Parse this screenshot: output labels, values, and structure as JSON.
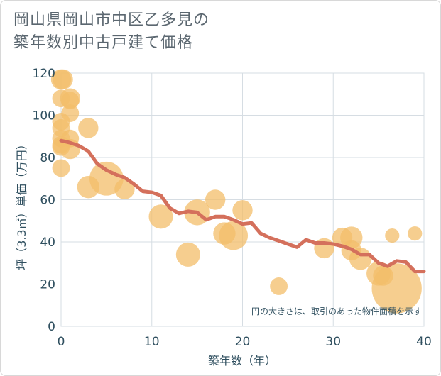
{
  "chart_data": {
    "type": "scatter",
    "title": [
      "岡山県岡山市中区乙多見の",
      "築年数別中古戸建て価格"
    ],
    "xlabel": "築年数（年）",
    "ylabel": "坪（3.3㎡）単価（万円）",
    "xlim": [
      0,
      40
    ],
    "ylim": [
      0,
      120
    ],
    "xticks": [
      "0",
      "10",
      "20",
      "30",
      "40"
    ],
    "yticks": [
      "0",
      "20",
      "40",
      "60",
      "80",
      "100",
      "120"
    ],
    "x_tick_values": [
      0,
      10,
      20,
      30,
      40
    ],
    "y_tick_values": [
      0,
      20,
      40,
      60,
      80,
      100,
      120
    ],
    "grid": true,
    "note": "円の大きさは、取引のあった物件面積を示す",
    "colors": {
      "bubble": "#f3bd6a",
      "line": "#d4705c",
      "grid": "#d6dde3",
      "text": "#2f4f5f"
    },
    "bubbles": [
      {
        "x": 0,
        "y": 117,
        "size": 3
      },
      {
        "x": 0.2,
        "y": 117,
        "size": 3
      },
      {
        "x": 0,
        "y": 108,
        "size": 2
      },
      {
        "x": 0,
        "y": 97,
        "size": 2
      },
      {
        "x": 0,
        "y": 94,
        "size": 2
      },
      {
        "x": 0,
        "y": 89,
        "size": 2
      },
      {
        "x": 0,
        "y": 86,
        "size": 2
      },
      {
        "x": 0,
        "y": 85,
        "size": 2
      },
      {
        "x": 0,
        "y": 75,
        "size": 2
      },
      {
        "x": 1,
        "y": 108,
        "size": 3
      },
      {
        "x": 1,
        "y": 107,
        "size": 2
      },
      {
        "x": 1,
        "y": 101,
        "size": 2
      },
      {
        "x": 1,
        "y": 89,
        "size": 2
      },
      {
        "x": 1,
        "y": 84,
        "size": 3
      },
      {
        "x": 3,
        "y": 94,
        "size": 3
      },
      {
        "x": 3,
        "y": 66,
        "size": 4
      },
      {
        "x": 5,
        "y": 70,
        "size": 12
      },
      {
        "x": 7,
        "y": 65,
        "size": 3
      },
      {
        "x": 11,
        "y": 52,
        "size": 5
      },
      {
        "x": 14,
        "y": 34,
        "size": 5
      },
      {
        "x": 15,
        "y": 54,
        "size": 6
      },
      {
        "x": 17,
        "y": 60,
        "size": 3
      },
      {
        "x": 18,
        "y": 44,
        "size": 4
      },
      {
        "x": 19,
        "y": 43,
        "size": 8
      },
      {
        "x": 20,
        "y": 55,
        "size": 3
      },
      {
        "x": 24,
        "y": 19,
        "size": 2
      },
      {
        "x": 29,
        "y": 37,
        "size": 3
      },
      {
        "x": 31,
        "y": 42,
        "size": 3
      },
      {
        "x": 32,
        "y": 42,
        "size": 4
      },
      {
        "x": 32,
        "y": 36,
        "size": 3
      },
      {
        "x": 33,
        "y": 32,
        "size": 4
      },
      {
        "x": 35,
        "y": 25,
        "size": 5
      },
      {
        "x": 35.5,
        "y": 24,
        "size": 3
      },
      {
        "x": 36.5,
        "y": 43,
        "size": 1
      },
      {
        "x": 37,
        "y": 18,
        "size": 30
      },
      {
        "x": 39,
        "y": 44,
        "size": 1
      }
    ],
    "trend": {
      "x": [
        0,
        1,
        2,
        3,
        4,
        5,
        6,
        7,
        8,
        9,
        10,
        11,
        12,
        13,
        14,
        15,
        16,
        17,
        18,
        19,
        20,
        21,
        22,
        23,
        24,
        25,
        26,
        27,
        28,
        29,
        30,
        31,
        32,
        33,
        34,
        35,
        36,
        37,
        38,
        39,
        40
      ],
      "y": [
        88,
        87,
        85.5,
        83,
        77,
        74,
        72,
        70.5,
        67.5,
        64,
        63.5,
        62,
        56,
        53.5,
        54.5,
        54,
        50.5,
        52,
        52,
        50.5,
        48.5,
        49,
        44,
        42,
        40.5,
        39,
        37.5,
        41,
        39.5,
        39.5,
        39,
        38,
        36.5,
        34,
        34,
        30,
        28.5,
        31,
        30.5,
        26,
        26
      ]
    }
  }
}
